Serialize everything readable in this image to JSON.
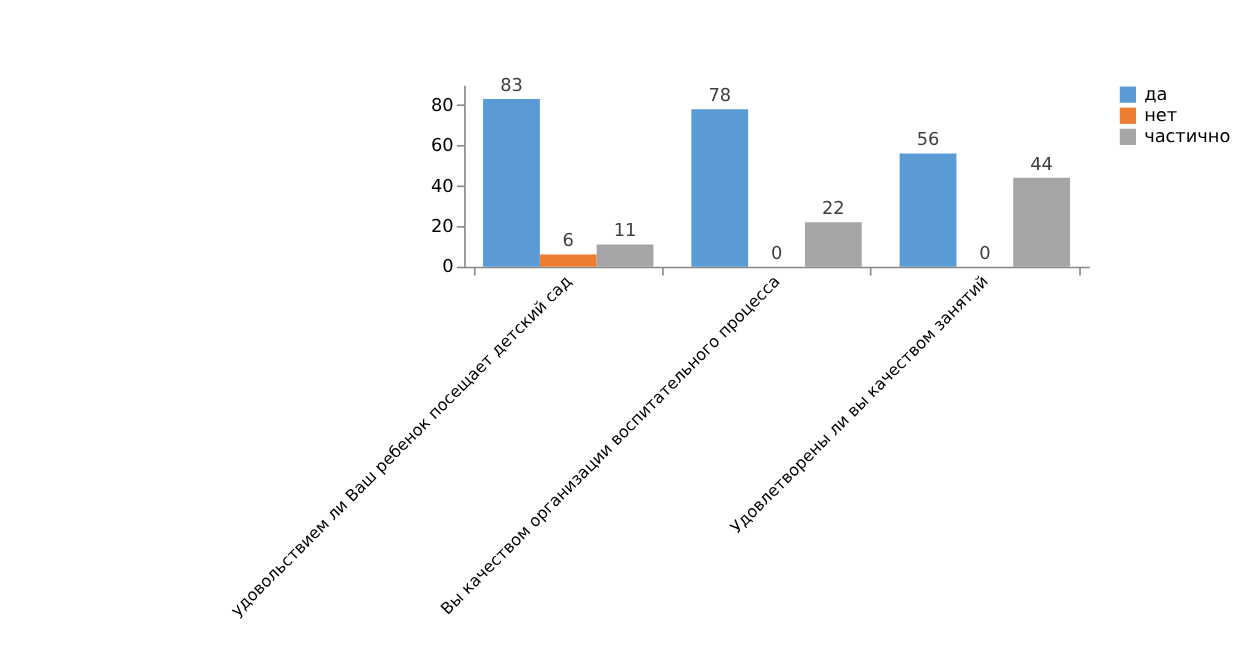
{
  "chart_data": {
    "type": "bar",
    "categories": [
      "удовольствием ли Ваш ребенок посещает детский сад",
      "Вы качеством организации воспитательного процесса",
      "Удовлетворены ли вы качеством занятий"
    ],
    "series": [
      {
        "name": "да",
        "color": "#5b9bd5",
        "values": [
          83,
          78,
          56
        ]
      },
      {
        "name": "нет",
        "color": "#ed7d31",
        "values": [
          6,
          0,
          0
        ]
      },
      {
        "name": "частично",
        "color": "#a5a5a5",
        "values": [
          11,
          22,
          44
        ]
      }
    ],
    "ylim": [
      0,
      90
    ],
    "yticks": [
      0,
      20,
      40,
      60,
      80
    ],
    "grid": false,
    "legend": "right",
    "data_labels": true
  }
}
